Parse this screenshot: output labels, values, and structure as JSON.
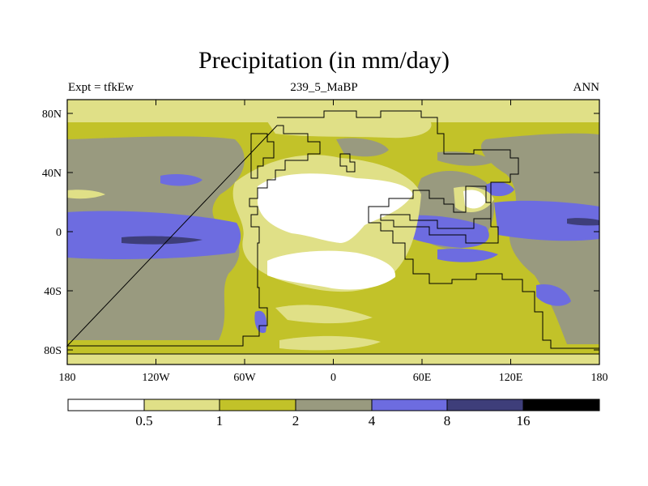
{
  "header": {
    "title": "Precipitation (in mm/day)",
    "experiment": "Expt = tfkEw",
    "subtitle": "239_5_MaBP",
    "season": "ANN"
  },
  "axes": {
    "lat_labels": [
      "80N",
      "40N",
      "0",
      "40S",
      "80S"
    ],
    "lon_labels": [
      "180",
      "120W",
      "60W",
      "0",
      "60E",
      "120E",
      "180"
    ]
  },
  "colorbar": {
    "levels": [
      "0.5",
      "1",
      "2",
      "4",
      "8",
      "16"
    ],
    "colors": [
      "#ffffff",
      "#e0e087",
      "#c2c229",
      "#999a7f",
      "#6d6ce0",
      "#3e3e7a",
      "#000000"
    ]
  }
}
